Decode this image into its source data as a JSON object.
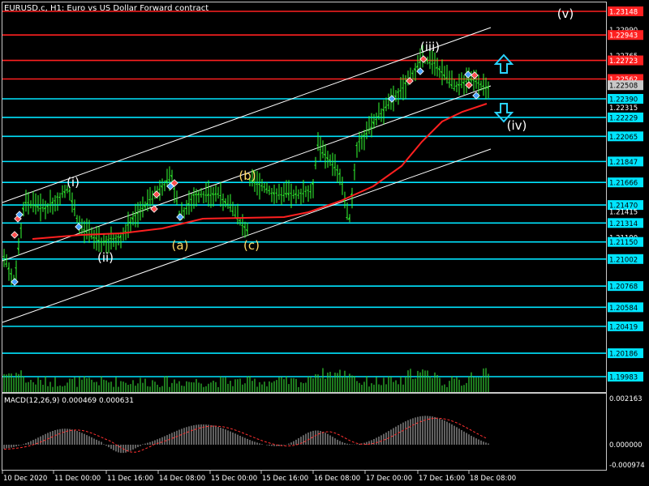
{
  "header": {
    "title": "EURUSD.c, H1:  Euro vs US Dollar Forward contract"
  },
  "colors": {
    "background": "#000000",
    "price_bar": "#33ff33",
    "volume": "#33cc33",
    "grid": "#c8c8c8",
    "channel": "#ffffff",
    "support": "#00e5ff",
    "resistance": "#ff2020",
    "moving_average": "#ff2020",
    "wave_white": "#ffffff",
    "wave_yellow": "#ffd966",
    "macd_hist": "#c0c0c0",
    "macd_signal": "#ff3030"
  },
  "price_axis": {
    "labels": [
      {
        "text": "1.23148",
        "style": "red"
      },
      {
        "text": "1.22990",
        "style": "plain"
      },
      {
        "text": "1.22943",
        "style": "red"
      },
      {
        "text": "1.22765",
        "style": "plain"
      },
      {
        "text": "1.22723",
        "style": "red"
      },
      {
        "text": "1.22562",
        "style": "red"
      },
      {
        "text": "1.22508",
        "style": "current"
      },
      {
        "text": "1.22390",
        "style": "cyan"
      },
      {
        "text": "1.22315",
        "style": "plain"
      },
      {
        "text": "1.22229",
        "style": "cyan"
      },
      {
        "text": "1.22065",
        "style": "cyan"
      },
      {
        "text": "1.21847",
        "style": "cyan"
      },
      {
        "text": "1.21666",
        "style": "cyan"
      },
      {
        "text": "1.21470",
        "style": "cyan"
      },
      {
        "text": "1.21415",
        "style": "plain"
      },
      {
        "text": "1.21314",
        "style": "cyan"
      },
      {
        "text": "1.21190",
        "style": "plain"
      },
      {
        "text": "1.21150",
        "style": "cyan"
      },
      {
        "text": "1.21002",
        "style": "cyan"
      },
      {
        "text": "1.20768",
        "style": "cyan"
      },
      {
        "text": "1.20584",
        "style": "cyan"
      },
      {
        "text": "1.20419",
        "style": "cyan"
      },
      {
        "text": "1.20186",
        "style": "cyan"
      },
      {
        "text": "1.19983",
        "style": "cyan"
      }
    ]
  },
  "resistance_levels": [
    1.23148,
    1.22943,
    1.22723,
    1.22562
  ],
  "support_levels": [
    1.2239,
    1.22229,
    1.22065,
    1.21847,
    1.21666,
    1.2147,
    1.21314,
    1.2115,
    1.21002,
    1.20768,
    1.20584,
    1.20419,
    1.20186,
    1.19983
  ],
  "wave_labels": [
    {
      "text": "(v)",
      "color": "white"
    },
    {
      "text": "(iii)",
      "color": "white"
    },
    {
      "text": "(iv)",
      "color": "white"
    },
    {
      "text": "(i)",
      "color": "white"
    },
    {
      "text": "(ii)",
      "color": "white"
    },
    {
      "text": "(b)",
      "color": "yellow"
    },
    {
      "text": "(a)",
      "color": "yellow"
    },
    {
      "text": "(c)",
      "color": "yellow"
    }
  ],
  "macd": {
    "label": "MACD(12,26,9) 0.000469 0.000631",
    "axis_labels": [
      "0.002163",
      "0.000000",
      "-0.000974"
    ]
  },
  "time_axis": {
    "labels": [
      "10 Dec 2020",
      "11 Dec 00:00",
      "11 Dec 16:00",
      "14 Dec 08:00",
      "15 Dec 00:00",
      "15 Dec 16:00",
      "16 Dec 08:00",
      "17 Dec 00:00",
      "17 Dec 16:00",
      "18 Dec 08:00"
    ]
  },
  "arrows": [
    {
      "name": "up-arrow-icon",
      "direction": "up"
    },
    {
      "name": "down-arrow-icon",
      "direction": "down"
    }
  ]
}
